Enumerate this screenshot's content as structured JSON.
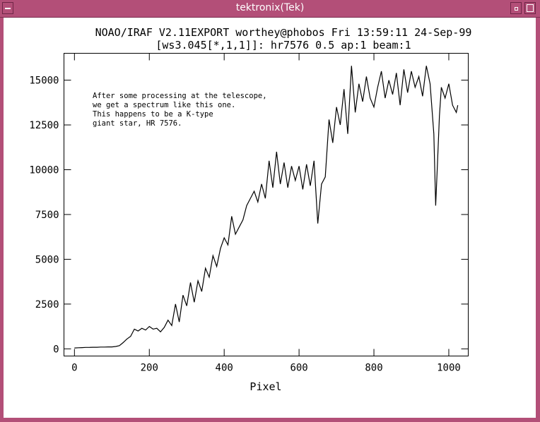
{
  "window": {
    "title": "tektronix(Tek)"
  },
  "chart_data": {
    "type": "line",
    "title": "NOAO/IRAF V2.11EXPORT worthey@phobos Fri 13:59:11 24-Sep-99",
    "subtitle": "[ws3.045[*,1,1]]: hr7576 0.5 ap:1 beam:1",
    "xlabel": "Pixel",
    "ylabel": "",
    "xlim": [
      -28,
      1052
    ],
    "ylim": [
      -400,
      16500
    ],
    "xticks": [
      0,
      200,
      400,
      600,
      800,
      1000
    ],
    "xtick_labels": [
      "0",
      "200",
      "400",
      "600",
      "800",
      "1000"
    ],
    "yticks": [
      0,
      2500,
      5000,
      7500,
      10000,
      12500,
      15000
    ],
    "ytick_labels": [
      "0",
      "2500",
      "5000",
      "7500",
      "10000",
      "12500",
      "15000"
    ],
    "annotation": [
      "After some processing at the telescope,",
      "we get a spectrum like this one.",
      "This happens to be a K-type",
      "giant star, HR 7576."
    ],
    "series": [
      {
        "name": "hr7576",
        "x": [
          0,
          10,
          20,
          30,
          40,
          50,
          60,
          70,
          80,
          90,
          100,
          110,
          120,
          130,
          140,
          150,
          160,
          170,
          180,
          190,
          200,
          210,
          220,
          230,
          240,
          250,
          260,
          270,
          280,
          290,
          300,
          310,
          320,
          330,
          340,
          350,
          360,
          370,
          380,
          390,
          400,
          410,
          420,
          430,
          440,
          450,
          460,
          470,
          480,
          490,
          500,
          510,
          520,
          530,
          540,
          550,
          560,
          570,
          580,
          590,
          600,
          610,
          620,
          630,
          640,
          650,
          660,
          670,
          680,
          690,
          700,
          710,
          720,
          730,
          740,
          750,
          760,
          770,
          780,
          790,
          800,
          810,
          820,
          830,
          840,
          850,
          860,
          870,
          880,
          890,
          900,
          910,
          920,
          930,
          940,
          950,
          960,
          965,
          970,
          975,
          980,
          990,
          1000,
          1010,
          1020,
          1024
        ],
        "y": [
          50,
          60,
          70,
          80,
          80,
          90,
          90,
          100,
          100,
          110,
          110,
          130,
          180,
          350,
          550,
          700,
          1100,
          1000,
          1150,
          1050,
          1250,
          1100,
          1150,
          950,
          1200,
          1600,
          1300,
          2500,
          1500,
          3000,
          2400,
          3700,
          2600,
          3800,
          3200,
          4500,
          4000,
          5200,
          4600,
          5600,
          6200,
          5800,
          7400,
          6400,
          6800,
          7200,
          8000,
          8400,
          8800,
          8200,
          9200,
          8400,
          10500,
          9000,
          11000,
          9200,
          10400,
          9000,
          10200,
          9400,
          10200,
          8900,
          10300,
          9100,
          10500,
          7000,
          9200,
          9600,
          12800,
          11500,
          13500,
          12500,
          14500,
          12000,
          15800,
          13200,
          14800,
          13800,
          15200,
          14000,
          13500,
          14600,
          15500,
          14000,
          15000,
          14200,
          15400,
          13600,
          15600,
          14300,
          15500,
          14600,
          15200,
          14100,
          15800,
          14800,
          12000,
          8000,
          10500,
          13000,
          14600,
          14000,
          14800,
          13600,
          13200,
          13600
        ]
      }
    ]
  }
}
